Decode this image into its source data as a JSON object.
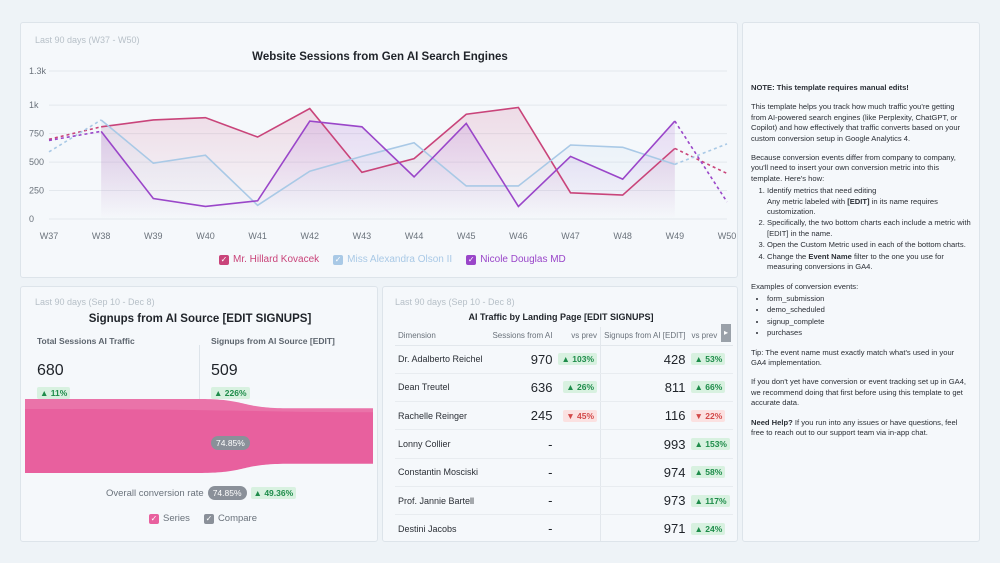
{
  "top_chart": {
    "period": "Last 90 days (W37 - W50)",
    "chart_data": {
      "type": "line",
      "title": "Website Sessions from Gen AI Search Engines",
      "ylim": [
        0,
        1300
      ],
      "yticks": [
        "1.3k",
        "1k",
        "750",
        "500",
        "250",
        "0"
      ],
      "ytick_values": [
        1300,
        1000,
        750,
        500,
        250,
        0
      ],
      "categories": [
        "W37",
        "W38",
        "W39",
        "W40",
        "W41",
        "W42",
        "W43",
        "W44",
        "W45",
        "W46",
        "W47",
        "W48",
        "W49",
        "W50"
      ],
      "grid": true,
      "legend": "bottom-center",
      "series": [
        {
          "name": "Mr. Hillard Kovacek",
          "color": "#c9447a",
          "values": [
            700,
            810,
            870,
            890,
            720,
            970,
            410,
            530,
            920,
            980,
            230,
            210,
            620,
            400
          ]
        },
        {
          "name": "Miss Alexandra Olson II",
          "color": "#a9c9e6",
          "values": [
            590,
            870,
            490,
            560,
            120,
            420,
            550,
            670,
            290,
            290,
            650,
            630,
            480,
            660
          ]
        },
        {
          "name": "Nicole Douglas MD",
          "color": "#9a46c9",
          "values": [
            690,
            770,
            180,
            110,
            160,
            860,
            810,
            370,
            840,
            110,
            550,
            350,
            860,
            150
          ]
        }
      ]
    }
  },
  "funnel": {
    "period": "Last 90 days (Sep 10 - Dec 8)",
    "title": "Signups from AI Source [EDIT SIGNUPS]",
    "metric1": {
      "label": "Total Sessions AI Traffic",
      "value": "680",
      "change": "11%",
      "change_arrow": "▲"
    },
    "metric2": {
      "label": "Signups from AI Source [EDIT]",
      "value": "509",
      "change": "226%",
      "change_arrow": "▲"
    },
    "mid_rate": "74.85%",
    "overall_label": "Overall conversion rate",
    "overall_rate": "74.85%",
    "overall_change": "49.36%",
    "overall_arrow": "▲",
    "conversion_fraction": 0.7485,
    "legend_series": "Series",
    "legend_compare": "Compare",
    "series_color": "#e8609e",
    "compare_color": "#8a9099"
  },
  "table": {
    "period": "Last 90 days (Sep 10 - Dec 8)",
    "title": "AI Traffic by Landing Page [EDIT SIGNUPS]",
    "headers": [
      "Dimension",
      "Sessions from AI",
      "vs prev",
      "Signups from AI [EDIT]",
      "vs prev"
    ],
    "scroll_icon": "▸",
    "rows": [
      {
        "name": "Dr. Adalberto Reichel",
        "sessions": "970",
        "s_change": "103%",
        "s_arrow": "▲",
        "s_dir": "up",
        "signups": "428",
        "g_change": "53%",
        "g_arrow": "▲",
        "g_dir": "up"
      },
      {
        "name": "Dean Treutel",
        "sessions": "636",
        "s_change": "26%",
        "s_arrow": "▲",
        "s_dir": "up",
        "signups": "811",
        "g_change": "66%",
        "g_arrow": "▲",
        "g_dir": "up"
      },
      {
        "name": "Rachelle Reinger",
        "sessions": "245",
        "s_change": "45%",
        "s_arrow": "▼",
        "s_dir": "down",
        "signups": "116",
        "g_change": "22%",
        "g_arrow": "▼",
        "g_dir": "down"
      },
      {
        "name": "Lonny Collier",
        "sessions": "-",
        "s_change": "",
        "s_arrow": "",
        "s_dir": "",
        "signups": "993",
        "g_change": "153%",
        "g_arrow": "▲",
        "g_dir": "up"
      },
      {
        "name": "Constantin Mosciski",
        "sessions": "-",
        "s_change": "",
        "s_arrow": "",
        "s_dir": "",
        "signups": "974",
        "g_change": "58%",
        "g_arrow": "▲",
        "g_dir": "up"
      },
      {
        "name": "Prof. Jannie Bartell",
        "sessions": "-",
        "s_change": "",
        "s_arrow": "",
        "s_dir": "",
        "signups": "973",
        "g_change": "117%",
        "g_arrow": "▲",
        "g_dir": "up"
      },
      {
        "name": "Destini Jacobs",
        "sessions": "-",
        "s_change": "",
        "s_arrow": "",
        "s_dir": "",
        "signups": "971",
        "g_change": "24%",
        "g_arrow": "▲",
        "g_dir": "up"
      }
    ]
  },
  "notes": {
    "heading": "NOTE: This template requires manual edits!",
    "p1": "This template helps you track how much traffic you're getting from AI-powered search engines (like Perplexity, ChatGPT, or Copilot) and how effectively that traffic converts based on your custom conversion setup in Google Analytics 4.",
    "p2": "Because conversion events differ from company to company, you'll need to insert your own conversion metric into this template. Here's how:",
    "step1_a": "Identify metrics that need editing",
    "step1_b_pre": "Any metric labeled with ",
    "step1_b_bold": "[EDIT]",
    "step1_b_post": " in its name requires customization.",
    "step2": "Specifically, the two bottom charts each include a metric with [EDIT] in the name.",
    "step3": "Open the Custom Metric used in each of the bottom charts.",
    "step4_pre": "Change the ",
    "step4_bold": "Event Name",
    "step4_post": " filter to the one you use for measuring conversions in GA4.",
    "examples_label": "Examples of conversion events:",
    "examples": [
      "form_submission",
      "demo_scheduled",
      "signup_complete",
      "purchases"
    ],
    "tip": "Tip: The event name must exactly match what's used in your GA4 implementation.",
    "p3": "If you don't yet have conversion or event tracking set up in GA4, we recommend doing that first before using this template to get accurate data.",
    "help_bold": "Need Help?",
    "help_rest": " If you run into any issues or have questions, feel free to reach out to our support team via in-app chat."
  }
}
